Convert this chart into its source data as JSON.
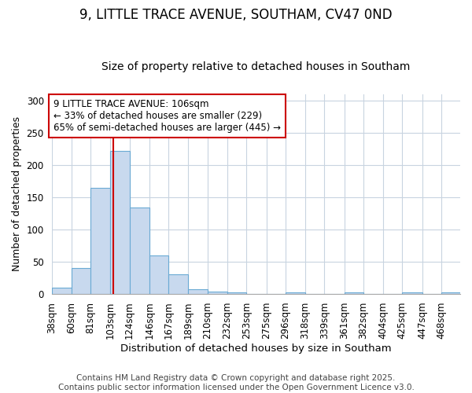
{
  "title1": "9, LITTLE TRACE AVENUE, SOUTHAM, CV47 0ND",
  "title2": "Size of property relative to detached houses in Southam",
  "xlabel": "Distribution of detached houses by size in Southam",
  "ylabel": "Number of detached properties",
  "bin_edges": [
    38,
    60,
    81,
    103,
    124,
    146,
    167,
    189,
    210,
    232,
    253,
    275,
    296,
    318,
    339,
    361,
    382,
    404,
    425,
    447,
    468,
    489
  ],
  "bar_heights": [
    10,
    40,
    165,
    222,
    134,
    60,
    30,
    8,
    4,
    3,
    0,
    0,
    3,
    0,
    0,
    2,
    0,
    0,
    2,
    0,
    2
  ],
  "bar_color": "#c8d9ee",
  "bar_edgecolor": "#6aaad4",
  "property_size": 106,
  "vline_color": "#cc0000",
  "annotation_text": "9 LITTLE TRACE AVENUE: 106sqm\n← 33% of detached houses are smaller (229)\n65% of semi-detached houses are larger (445) →",
  "annotation_bbox_color": "#ffffff",
  "annotation_bbox_edgecolor": "#cc0000",
  "ylim": [
    0,
    310
  ],
  "yticks": [
    0,
    50,
    100,
    150,
    200,
    250,
    300
  ],
  "fig_background": "#ffffff",
  "plot_background": "#ffffff",
  "grid_color": "#c8d4e0",
  "footer_text": "Contains HM Land Registry data © Crown copyright and database right 2025.\nContains public sector information licensed under the Open Government Licence v3.0.",
  "title1_fontsize": 12,
  "title2_fontsize": 10,
  "xlabel_fontsize": 9.5,
  "ylabel_fontsize": 9,
  "tick_fontsize": 8.5,
  "annotation_fontsize": 8.5,
  "footer_fontsize": 7.5
}
